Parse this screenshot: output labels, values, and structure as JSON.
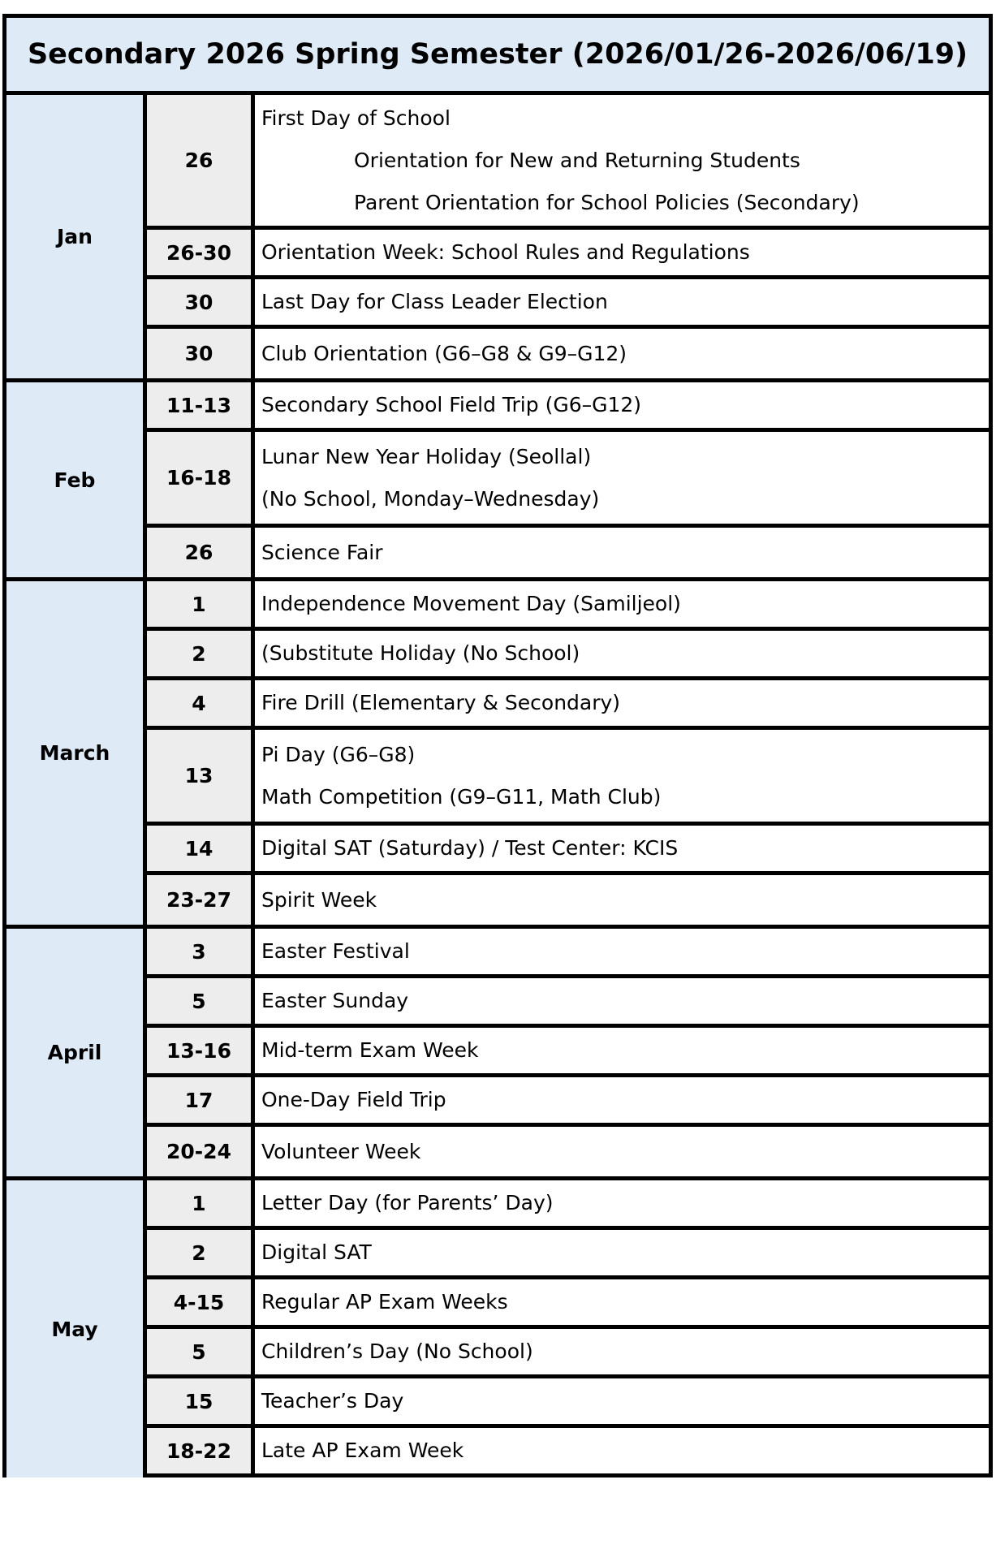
{
  "title": "Secondary 2026 Spring Semester (2026/01/26-2026/06/19)",
  "colors": {
    "header_bg": "#deeaf6",
    "date_bg": "#ededed",
    "border": "#000000"
  },
  "months": [
    {
      "name": "Jan",
      "entries": [
        {
          "date": "26",
          "lines": [
            "First Day of School"
          ],
          "sub_lines": [
            "Orientation for New and Returning Students",
            "Parent Orientation for School Policies (Secondary)"
          ]
        },
        {
          "date": "26-30",
          "lines": [
            "Orientation Week: School Rules and Regulations"
          ]
        },
        {
          "date": "30",
          "lines": [
            "Last Day for Class Leader Election"
          ]
        },
        {
          "date": "30",
          "lines": [
            "Club Orientation (G6–G8 & G9–G12)"
          ]
        }
      ]
    },
    {
      "name": "Feb",
      "entries": [
        {
          "date": "11-13",
          "lines": [
            "Secondary School Field Trip (G6–G12)"
          ]
        },
        {
          "date": "16-18",
          "lines": [
            "Lunar New Year Holiday (Seollal)",
            "(No School, Monday–Wednesday)"
          ]
        },
        {
          "date": "26",
          "lines": [
            "Science Fair"
          ]
        }
      ]
    },
    {
      "name": "March",
      "entries": [
        {
          "date": "1",
          "lines": [
            "Independence Movement Day (Samiljeol)"
          ]
        },
        {
          "date": "2",
          "lines": [
            "(Substitute Holiday (No School)"
          ]
        },
        {
          "date": "4",
          "lines": [
            "Fire Drill (Elementary & Secondary)"
          ]
        },
        {
          "date": "13",
          "lines": [
            "Pi Day (G6–G8)",
            "Math Competition (G9–G11, Math Club)"
          ]
        },
        {
          "date": "14",
          "lines": [
            "Digital SAT (Saturday) / Test Center: KCIS"
          ]
        },
        {
          "date": "23-27",
          "lines": [
            "Spirit Week"
          ]
        }
      ]
    },
    {
      "name": "April",
      "entries": [
        {
          "date": "3",
          "lines": [
            "Easter Festival"
          ]
        },
        {
          "date": "5",
          "lines": [
            "Easter Sunday"
          ]
        },
        {
          "date": "13-16",
          "lines": [
            "Mid-term Exam Week"
          ]
        },
        {
          "date": "17",
          "lines": [
            "One-Day Field Trip"
          ]
        },
        {
          "date": "20-24",
          "lines": [
            "Volunteer Week"
          ]
        }
      ]
    },
    {
      "name": "May",
      "entries": [
        {
          "date": "1",
          "lines": [
            "Letter Day (for Parents’ Day)"
          ]
        },
        {
          "date": "2",
          "lines": [
            "Digital SAT"
          ]
        },
        {
          "date": "4-15",
          "lines": [
            "Regular AP Exam Weeks"
          ]
        },
        {
          "date": "5",
          "lines": [
            "Children’s Day (No School)"
          ]
        },
        {
          "date": "15",
          "lines": [
            "Teacher’s Day"
          ]
        },
        {
          "date": "18-22",
          "lines": [
            "Late AP Exam Week"
          ]
        }
      ]
    }
  ]
}
